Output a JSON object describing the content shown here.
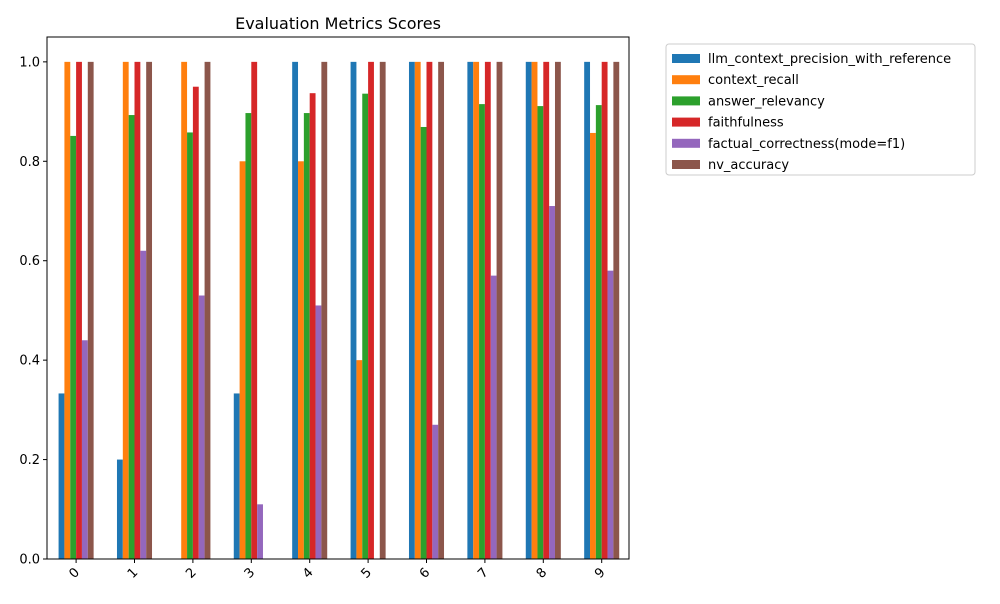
{
  "chart_data": {
    "type": "bar",
    "title": "Evaluation Metrics Scores",
    "xlabel": "",
    "ylabel": "",
    "ylim": [
      0,
      1.05
    ],
    "yticks": [
      "0.0",
      "0.2",
      "0.4",
      "0.6",
      "0.8",
      "1.0"
    ],
    "grid": false,
    "legend_position": "outside-top-right",
    "categories": [
      "0",
      "1",
      "2",
      "3",
      "4",
      "5",
      "6",
      "7",
      "8",
      "9"
    ],
    "series": [
      {
        "name": "llm_context_precision_with_reference",
        "color": "#1f77b4",
        "values": [
          0.333,
          0.2,
          0.0,
          0.333,
          1.0,
          1.0,
          1.0,
          1.0,
          1.0,
          1.0
        ]
      },
      {
        "name": "context_recall",
        "color": "#ff7f0e",
        "values": [
          1.0,
          1.0,
          1.0,
          0.8,
          0.8,
          0.4,
          1.0,
          1.0,
          1.0,
          0.857
        ]
      },
      {
        "name": "answer_relevancy",
        "color": "#2ca02c",
        "values": [
          0.851,
          0.893,
          0.858,
          0.897,
          0.897,
          0.936,
          0.869,
          0.915,
          0.911,
          0.913
        ]
      },
      {
        "name": "faithfulness",
        "color": "#d62728",
        "values": [
          1.0,
          1.0,
          0.95,
          1.0,
          0.937,
          1.0,
          1.0,
          1.0,
          1.0,
          1.0
        ]
      },
      {
        "name": "factual_correctness(mode=f1)",
        "color": "#9467bd",
        "values": [
          0.44,
          0.62,
          0.53,
          0.11,
          0.51,
          0.0,
          0.27,
          0.57,
          0.71,
          0.58
        ]
      },
      {
        "name": "nv_accuracy",
        "color": "#8c564b",
        "values": [
          1.0,
          1.0,
          1.0,
          0.0,
          1.0,
          1.0,
          1.0,
          1.0,
          1.0,
          1.0
        ]
      }
    ]
  }
}
